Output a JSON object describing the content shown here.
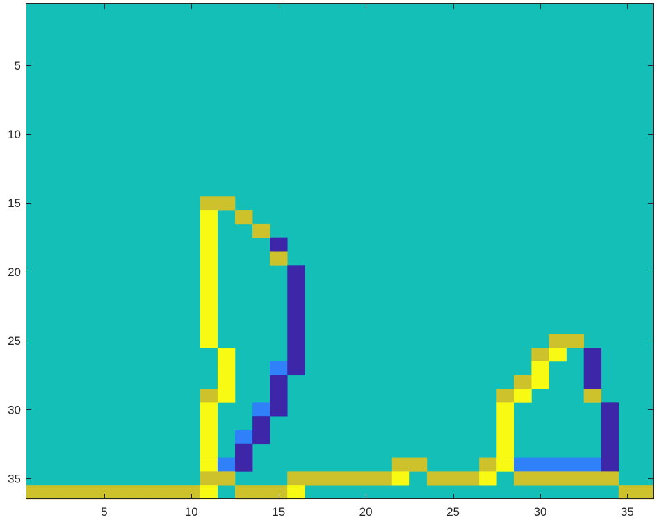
{
  "chart_data": {
    "type": "heatmap",
    "title": "",
    "xlabel": "",
    "ylabel": "",
    "xlim": [
      0.5,
      36.5
    ],
    "ylim": [
      0.5,
      36.5
    ],
    "y_direction": "reverse",
    "grid": false,
    "legend": "none",
    "x_ticks": [
      5,
      10,
      15,
      20,
      25,
      30,
      35
    ],
    "y_ticks": [
      5,
      10,
      15,
      20,
      25,
      30,
      35
    ],
    "x_tick_labels": [
      "5",
      "10",
      "15",
      "20",
      "25",
      "30",
      "35"
    ],
    "y_tick_labels": [
      "5",
      "10",
      "15",
      "20",
      "25",
      "30",
      "35"
    ],
    "background_value": 0,
    "colormap": {
      "-2": "#3e26a8",
      "-1": "#2f80f9",
      "0": "#14bfb7",
      "1": "#cdc22c",
      "2": "#f9fa14"
    },
    "cells": [
      {
        "row": 15,
        "col": 11,
        "value": 1
      },
      {
        "row": 15,
        "col": 12,
        "value": 1
      },
      {
        "row": 16,
        "col": 11,
        "value": 2
      },
      {
        "row": 16,
        "col": 13,
        "value": 1
      },
      {
        "row": 17,
        "col": 11,
        "value": 2
      },
      {
        "row": 17,
        "col": 14,
        "value": 1
      },
      {
        "row": 18,
        "col": 11,
        "value": 2
      },
      {
        "row": 18,
        "col": 15,
        "value": -2
      },
      {
        "row": 19,
        "col": 11,
        "value": 2
      },
      {
        "row": 19,
        "col": 15,
        "value": 1
      },
      {
        "row": 20,
        "col": 11,
        "value": 2
      },
      {
        "row": 20,
        "col": 16,
        "value": -2
      },
      {
        "row": 21,
        "col": 11,
        "value": 2
      },
      {
        "row": 21,
        "col": 16,
        "value": -2
      },
      {
        "row": 22,
        "col": 11,
        "value": 2
      },
      {
        "row": 22,
        "col": 16,
        "value": -2
      },
      {
        "row": 23,
        "col": 11,
        "value": 2
      },
      {
        "row": 23,
        "col": 16,
        "value": -2
      },
      {
        "row": 24,
        "col": 11,
        "value": 2
      },
      {
        "row": 24,
        "col": 16,
        "value": -2
      },
      {
        "row": 25,
        "col": 11,
        "value": 2
      },
      {
        "row": 25,
        "col": 16,
        "value": -2
      },
      {
        "row": 25,
        "col": 31,
        "value": 1
      },
      {
        "row": 25,
        "col": 32,
        "value": 1
      },
      {
        "row": 26,
        "col": 12,
        "value": 2
      },
      {
        "row": 26,
        "col": 16,
        "value": -2
      },
      {
        "row": 26,
        "col": 30,
        "value": 1
      },
      {
        "row": 26,
        "col": 31,
        "value": 2
      },
      {
        "row": 26,
        "col": 33,
        "value": -2
      },
      {
        "row": 27,
        "col": 12,
        "value": 2
      },
      {
        "row": 27,
        "col": 15,
        "value": -1
      },
      {
        "row": 27,
        "col": 16,
        "value": -2
      },
      {
        "row": 27,
        "col": 30,
        "value": 2
      },
      {
        "row": 27,
        "col": 33,
        "value": -2
      },
      {
        "row": 28,
        "col": 12,
        "value": 2
      },
      {
        "row": 28,
        "col": 15,
        "value": -2
      },
      {
        "row": 28,
        "col": 29,
        "value": 1
      },
      {
        "row": 28,
        "col": 30,
        "value": 2
      },
      {
        "row": 28,
        "col": 33,
        "value": -2
      },
      {
        "row": 29,
        "col": 11,
        "value": 1
      },
      {
        "row": 29,
        "col": 12,
        "value": 2
      },
      {
        "row": 29,
        "col": 15,
        "value": -2
      },
      {
        "row": 29,
        "col": 28,
        "value": 1
      },
      {
        "row": 29,
        "col": 29,
        "value": 2
      },
      {
        "row": 29,
        "col": 33,
        "value": 1
      },
      {
        "row": 30,
        "col": 11,
        "value": 2
      },
      {
        "row": 30,
        "col": 14,
        "value": -1
      },
      {
        "row": 30,
        "col": 15,
        "value": -2
      },
      {
        "row": 30,
        "col": 28,
        "value": 2
      },
      {
        "row": 30,
        "col": 34,
        "value": -2
      },
      {
        "row": 31,
        "col": 11,
        "value": 2
      },
      {
        "row": 31,
        "col": 14,
        "value": -2
      },
      {
        "row": 31,
        "col": 28,
        "value": 2
      },
      {
        "row": 31,
        "col": 34,
        "value": -2
      },
      {
        "row": 32,
        "col": 11,
        "value": 2
      },
      {
        "row": 32,
        "col": 13,
        "value": -1
      },
      {
        "row": 32,
        "col": 14,
        "value": -2
      },
      {
        "row": 32,
        "col": 28,
        "value": 2
      },
      {
        "row": 32,
        "col": 34,
        "value": -2
      },
      {
        "row": 33,
        "col": 11,
        "value": 2
      },
      {
        "row": 33,
        "col": 13,
        "value": -2
      },
      {
        "row": 33,
        "col": 28,
        "value": 2
      },
      {
        "row": 33,
        "col": 34,
        "value": -2
      },
      {
        "row": 34,
        "col": 11,
        "value": 2
      },
      {
        "row": 34,
        "col": 12,
        "value": -1
      },
      {
        "row": 34,
        "col": 13,
        "value": -2
      },
      {
        "row": 34,
        "col": 22,
        "value": 1
      },
      {
        "row": 34,
        "col": 23,
        "value": 1
      },
      {
        "row": 34,
        "col": 27,
        "value": 1
      },
      {
        "row": 34,
        "col": 28,
        "value": 2
      },
      {
        "row": 34,
        "col": 29,
        "value": -1
      },
      {
        "row": 34,
        "col": 30,
        "value": -1
      },
      {
        "row": 34,
        "col": 31,
        "value": -1
      },
      {
        "row": 34,
        "col": 32,
        "value": -1
      },
      {
        "row": 34,
        "col": 33,
        "value": -1
      },
      {
        "row": 34,
        "col": 34,
        "value": -2
      },
      {
        "row": 35,
        "col": 11,
        "value": 1
      },
      {
        "row": 35,
        "col": 12,
        "value": 1
      },
      {
        "row": 35,
        "col": 16,
        "value": 1
      },
      {
        "row": 35,
        "col": 17,
        "value": 1
      },
      {
        "row": 35,
        "col": 18,
        "value": 1
      },
      {
        "row": 35,
        "col": 19,
        "value": 1
      },
      {
        "row": 35,
        "col": 20,
        "value": 1
      },
      {
        "row": 35,
        "col": 21,
        "value": 1
      },
      {
        "row": 35,
        "col": 22,
        "value": 2
      },
      {
        "row": 35,
        "col": 24,
        "value": 1
      },
      {
        "row": 35,
        "col": 25,
        "value": 1
      },
      {
        "row": 35,
        "col": 26,
        "value": 1
      },
      {
        "row": 35,
        "col": 27,
        "value": 2
      },
      {
        "row": 35,
        "col": 29,
        "value": 1
      },
      {
        "row": 35,
        "col": 30,
        "value": 1
      },
      {
        "row": 35,
        "col": 31,
        "value": 1
      },
      {
        "row": 35,
        "col": 32,
        "value": 1
      },
      {
        "row": 35,
        "col": 33,
        "value": 1
      },
      {
        "row": 35,
        "col": 34,
        "value": 1
      },
      {
        "row": 36,
        "col": 1,
        "value": 1
      },
      {
        "row": 36,
        "col": 2,
        "value": 1
      },
      {
        "row": 36,
        "col": 3,
        "value": 1
      },
      {
        "row": 36,
        "col": 4,
        "value": 1
      },
      {
        "row": 36,
        "col": 5,
        "value": 1
      },
      {
        "row": 36,
        "col": 6,
        "value": 1
      },
      {
        "row": 36,
        "col": 7,
        "value": 1
      },
      {
        "row": 36,
        "col": 8,
        "value": 1
      },
      {
        "row": 36,
        "col": 9,
        "value": 1
      },
      {
        "row": 36,
        "col": 10,
        "value": 1
      },
      {
        "row": 36,
        "col": 11,
        "value": 2
      },
      {
        "row": 36,
        "col": 13,
        "value": 1
      },
      {
        "row": 36,
        "col": 14,
        "value": 1
      },
      {
        "row": 36,
        "col": 15,
        "value": 1
      },
      {
        "row": 36,
        "col": 16,
        "value": 2
      },
      {
        "row": 36,
        "col": 35,
        "value": 1
      },
      {
        "row": 36,
        "col": 36,
        "value": 1
      }
    ]
  }
}
